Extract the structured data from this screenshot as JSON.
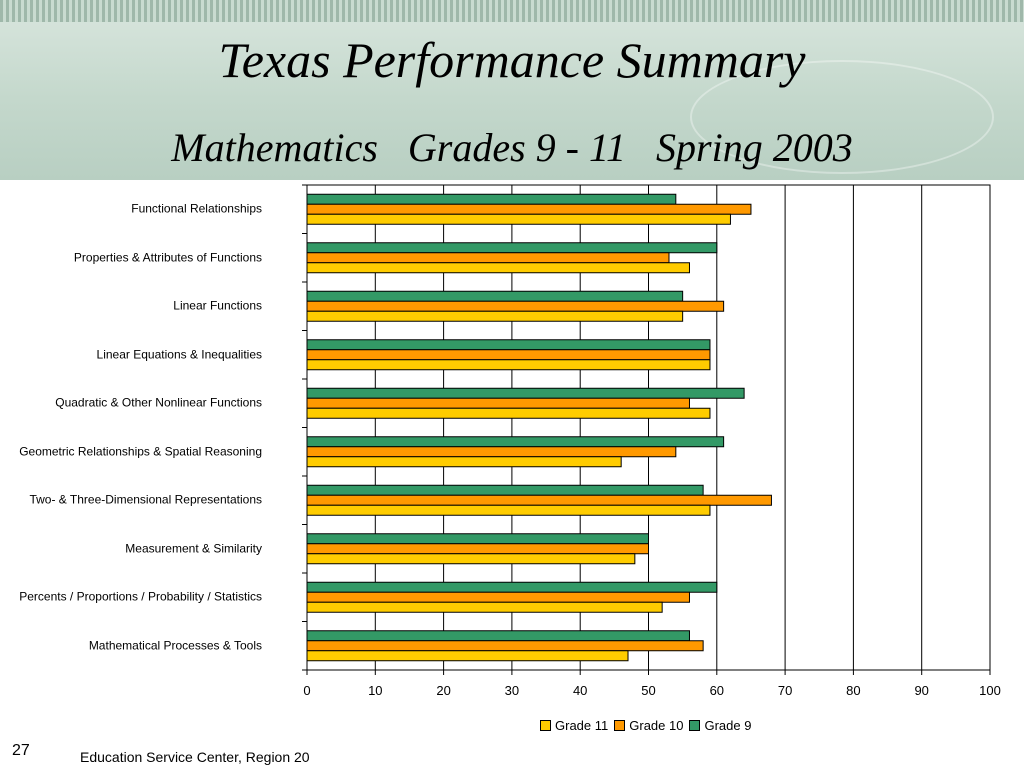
{
  "slide": {
    "title": "Texas Performance Summary",
    "subtitle": "Mathematics   Grades 9 - 11   Spring 2003",
    "number": "27",
    "footer": "Education Service Center, Region 20"
  },
  "colors": {
    "grade11": "#ffcc00",
    "grade10": "#ff9900",
    "grade9": "#339966",
    "header_band": "#c4d8cc"
  },
  "chart_data": {
    "type": "bar",
    "orientation": "horizontal",
    "categories": [
      "Functional Relationships",
      "Properties & Attributes of Functions",
      "Linear Functions",
      "Linear Equations & Inequalities",
      "Quadratic & Other Nonlinear Functions",
      "Geometric Relationships & Spatial Reasoning",
      "Two- & Three-Dimensional Representations",
      "Measurement & Similarity",
      "Percents / Proportions / Probability / Statistics",
      "Mathematical Processes & Tools"
    ],
    "series": [
      {
        "name": "Grade 9",
        "values": [
          54,
          60,
          55,
          59,
          64,
          61,
          58,
          50,
          60,
          56
        ]
      },
      {
        "name": "Grade 10",
        "values": [
          65,
          53,
          61,
          59,
          56,
          54,
          68,
          50,
          56,
          58
        ]
      },
      {
        "name": "Grade 11",
        "values": [
          62,
          56,
          55,
          59,
          59,
          46,
          59,
          48,
          52,
          47
        ]
      }
    ],
    "legend": [
      "Grade 11",
      "Grade 10",
      "Grade 9"
    ],
    "xlim": [
      0,
      100
    ],
    "ticks": [
      "0",
      "10",
      "20",
      "30",
      "40",
      "50",
      "60",
      "70",
      "80",
      "90",
      "100"
    ],
    "grid": true,
    "legend_position": "bottom"
  }
}
